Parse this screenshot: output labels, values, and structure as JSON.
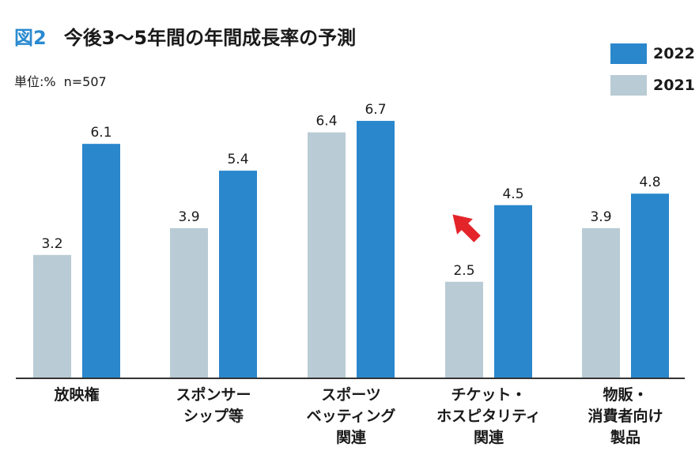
{
  "header": {
    "figure_label": "図2",
    "title": "今後3〜5年間の年間成長率の予測",
    "unit": "単位:%",
    "sample": "n=507"
  },
  "colors": {
    "y2022": "#2a87cc",
    "y2021": "#b9cbd4",
    "arrow": "#e3252a",
    "axis": "#333333"
  },
  "chart_data": {
    "type": "bar",
    "title": "今後3〜5年間の年間成長率の予測",
    "ylabel": "単位:%",
    "categories": [
      [
        "放映権"
      ],
      [
        "スポンサー",
        "シップ等"
      ],
      [
        "スポーツ",
        "ベッティング",
        "関連"
      ],
      [
        "チケット・",
        "ホスピタリティ",
        "関連"
      ],
      [
        "物販・",
        "消費者向け",
        "製品"
      ]
    ],
    "series": [
      {
        "name": "2021",
        "values": [
          3.2,
          3.9,
          6.4,
          2.5,
          3.9
        ]
      },
      {
        "name": "2022",
        "values": [
          6.1,
          5.4,
          6.7,
          4.5,
          4.8
        ]
      }
    ],
    "ylim": [
      0,
      7
    ],
    "legend": "top-right",
    "grid": false,
    "annotation": "up-arrow on チケット・ホスピタリティ関連"
  }
}
